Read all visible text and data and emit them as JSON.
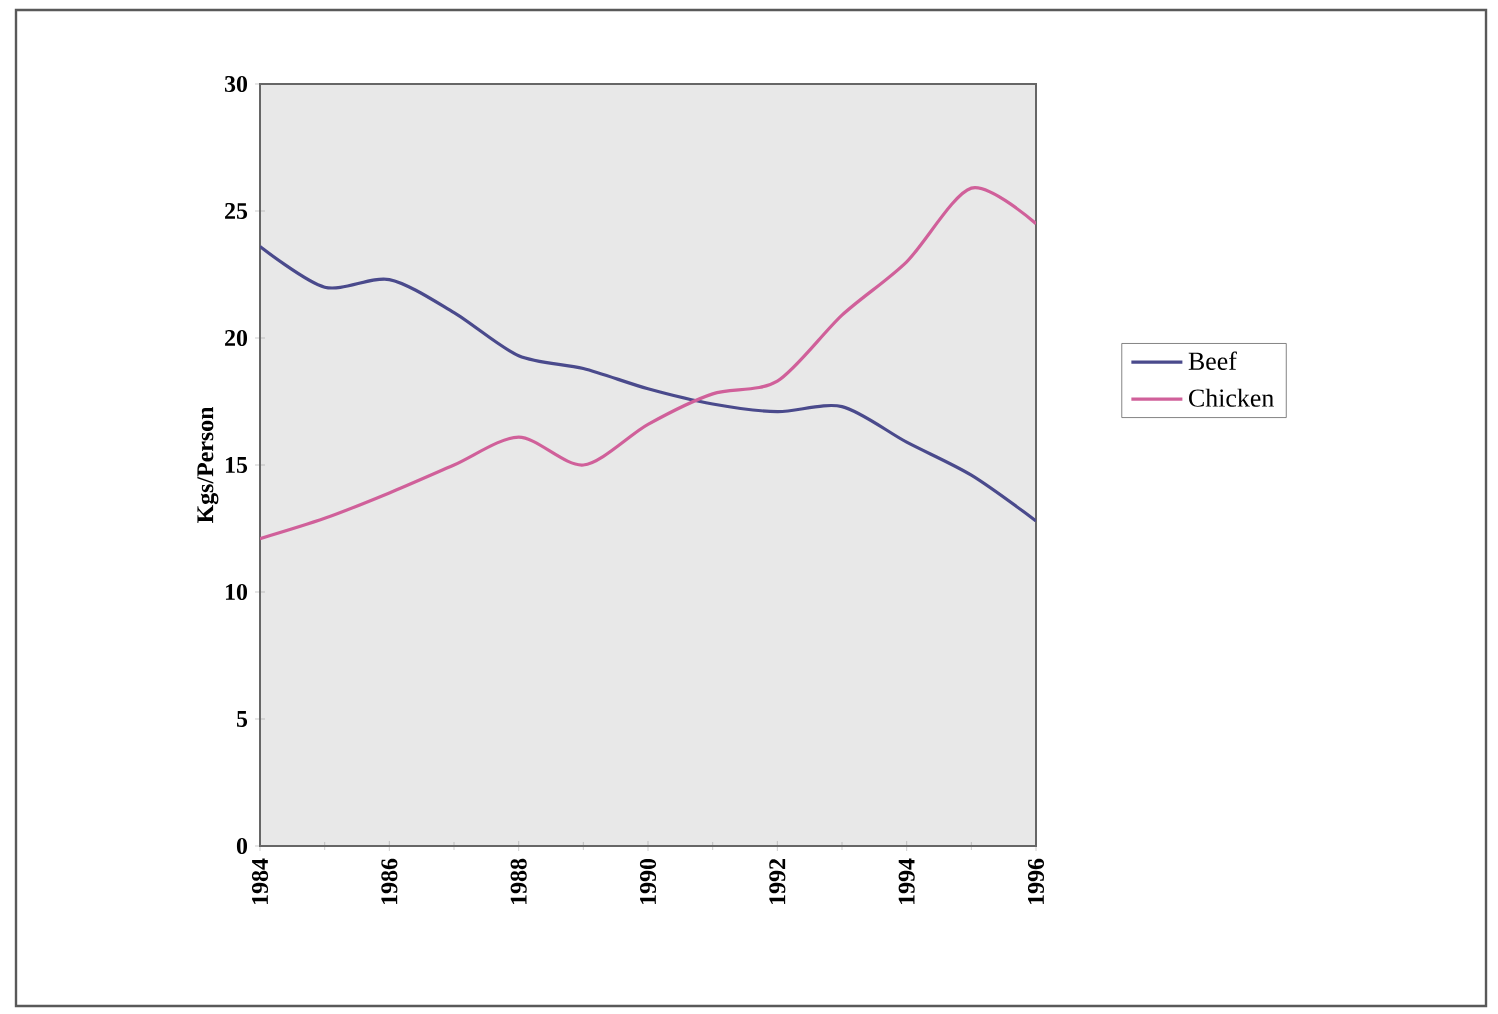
{
  "chart_data": {
    "type": "line",
    "ylabel": "Kgs/Person",
    "x": [
      1984,
      1985,
      1986,
      1987,
      1988,
      1989,
      1990,
      1991,
      1992,
      1993,
      1994,
      1995,
      1996
    ],
    "series": [
      {
        "name": "Beef",
        "color": "#4a4a8c",
        "values": [
          23.6,
          22.0,
          22.3,
          21.0,
          19.3,
          18.8,
          18.0,
          17.4,
          17.1,
          17.3,
          15.9,
          14.6,
          12.8
        ]
      },
      {
        "name": "Chicken",
        "color": "#d0609a",
        "values": [
          12.1,
          12.9,
          13.9,
          15.0,
          16.1,
          15.0,
          16.6,
          17.8,
          18.3,
          20.9,
          23.0,
          25.9,
          24.5
        ]
      }
    ],
    "xlim": [
      1984,
      1996
    ],
    "ylim": [
      0,
      30
    ],
    "xticks": [
      1984,
      1986,
      1988,
      1990,
      1992,
      1994,
      1996
    ],
    "yticks": [
      0,
      5,
      10,
      15,
      20,
      25,
      30
    ],
    "legend": "right",
    "marker": "none",
    "line_style": "solid",
    "grid": false
  }
}
